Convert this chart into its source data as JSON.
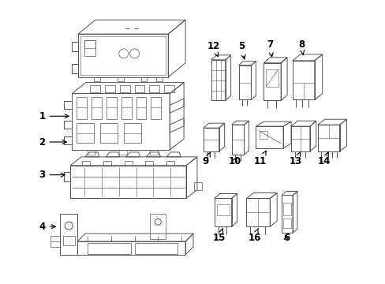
{
  "bg_color": "#ffffff",
  "line_color": "#555555",
  "label_color": "#000000",
  "figsize": [
    4.89,
    3.6
  ],
  "dpi": 100,
  "lw": 0.7
}
